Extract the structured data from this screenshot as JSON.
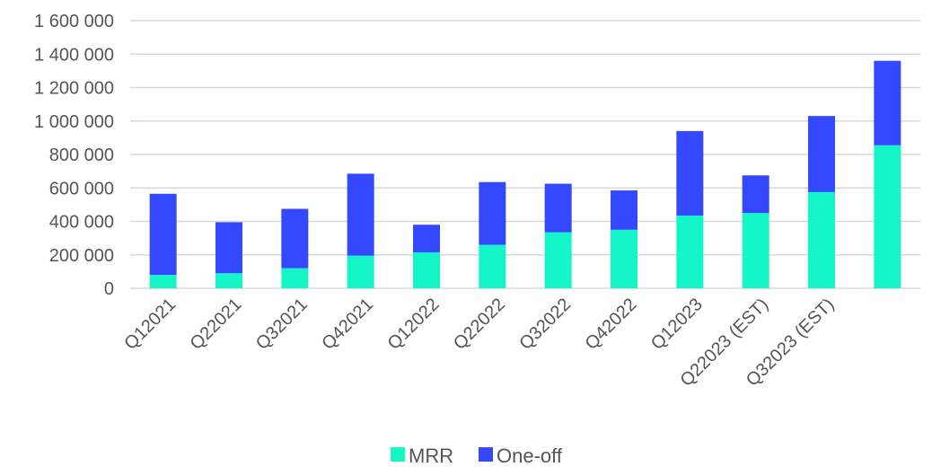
{
  "chart_data": {
    "type": "bar",
    "stacked": true,
    "categories": [
      "Q12021",
      "Q22021",
      "Q32021",
      "Q42021",
      "Q12022",
      "Q22022",
      "Q32022",
      "Q42022",
      "Q12023",
      "Q22023 (EST)",
      "Q32023 (EST)",
      ""
    ],
    "series": [
      {
        "name": "MRR",
        "color": "#14f5c8",
        "values": [
          80000,
          90000,
          120000,
          195000,
          215000,
          260000,
          335000,
          350000,
          435000,
          450000,
          575000,
          855000
        ]
      },
      {
        "name": "One-off",
        "color": "#3348ff",
        "values": [
          485000,
          305000,
          355000,
          490000,
          165000,
          375000,
          290000,
          235000,
          505000,
          225000,
          455000,
          505000
        ]
      }
    ],
    "title": "",
    "xlabel": "",
    "ylabel": "",
    "ylim": [
      0,
      1600000
    ],
    "yticks": [
      0,
      200000,
      400000,
      600000,
      800000,
      1000000,
      1200000,
      1400000,
      1600000
    ],
    "ytick_labels": [
      "0",
      "200 000",
      "400 000",
      "600 000",
      "800 000",
      "1 000 000",
      "1 200 000",
      "1 400 000",
      "1 600 000"
    ],
    "grid": true,
    "legend": "bottom"
  }
}
